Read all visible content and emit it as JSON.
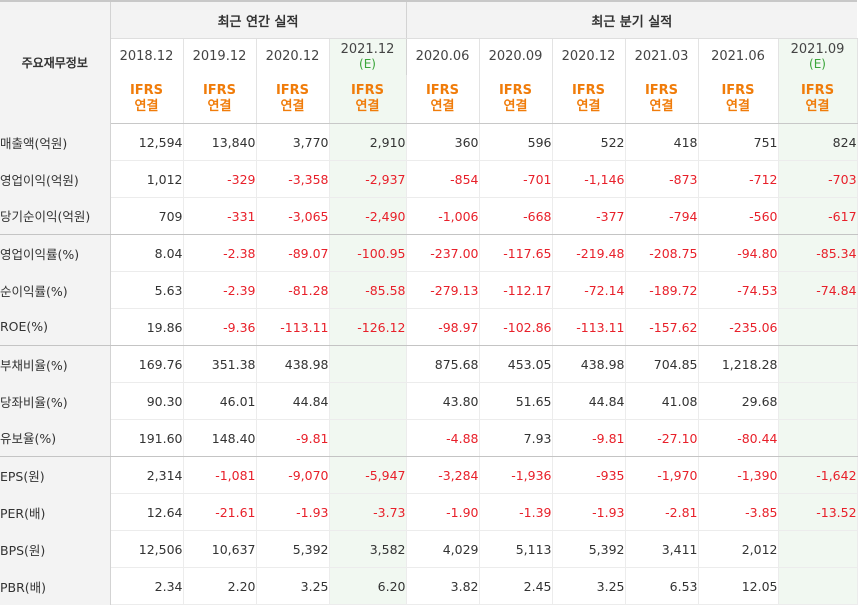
{
  "header": {
    "corner_label": "주요재무정보",
    "annual_group": "최근 연간 실적",
    "quarterly_group": "최근 분기 실적",
    "est_mark": "(E)",
    "acc_line1": "IFRS",
    "acc_line2": "연결"
  },
  "colors": {
    "negative": "#e8202a",
    "accounting": "#f07c0a",
    "estimate_bg": "#f1f8f1",
    "estimate_mark": "#3aa53a"
  },
  "periods": [
    {
      "label": "2018.12",
      "est": false
    },
    {
      "label": "2019.12",
      "est": false
    },
    {
      "label": "2020.12",
      "est": false
    },
    {
      "label": "2021.12",
      "est": true
    },
    {
      "label": "2020.06",
      "est": false
    },
    {
      "label": "2020.09",
      "est": false
    },
    {
      "label": "2020.12",
      "est": false
    },
    {
      "label": "2021.03",
      "est": false
    },
    {
      "label": "2021.06",
      "est": false
    },
    {
      "label": "2021.09",
      "est": true
    }
  ],
  "rows": [
    {
      "label": "매출액(억원)",
      "values": [
        "12,594",
        "13,840",
        "3,770",
        "2,910",
        "360",
        "596",
        "522",
        "418",
        "751",
        "824"
      ]
    },
    {
      "label": "영업이익(억원)",
      "values": [
        "1,012",
        "-329",
        "-3,358",
        "-2,937",
        "-854",
        "-701",
        "-1,146",
        "-873",
        "-712",
        "-703"
      ]
    },
    {
      "label": "당기순이익(억원)",
      "values": [
        "709",
        "-331",
        "-3,065",
        "-2,490",
        "-1,006",
        "-668",
        "-377",
        "-794",
        "-560",
        "-617"
      ]
    },
    {
      "label": "영업이익률(%)",
      "values": [
        "8.04",
        "-2.38",
        "-89.07",
        "-100.95",
        "-237.00",
        "-117.65",
        "-219.48",
        "-208.75",
        "-94.80",
        "-85.34"
      ]
    },
    {
      "label": "순이익률(%)",
      "values": [
        "5.63",
        "-2.39",
        "-81.28",
        "-85.58",
        "-279.13",
        "-112.17",
        "-72.14",
        "-189.72",
        "-74.53",
        "-74.84"
      ]
    },
    {
      "label": "ROE(%)",
      "values": [
        "19.86",
        "-9.36",
        "-113.11",
        "-126.12",
        "-98.97",
        "-102.86",
        "-113.11",
        "-157.62",
        "-235.06",
        ""
      ]
    },
    {
      "label": "부채비율(%)",
      "values": [
        "169.76",
        "351.38",
        "438.98",
        "",
        "875.68",
        "453.05",
        "438.98",
        "704.85",
        "1,218.28",
        ""
      ]
    },
    {
      "label": "당좌비율(%)",
      "values": [
        "90.30",
        "46.01",
        "44.84",
        "",
        "43.80",
        "51.65",
        "44.84",
        "41.08",
        "29.68",
        ""
      ]
    },
    {
      "label": "유보율(%)",
      "values": [
        "191.60",
        "148.40",
        "-9.81",
        "",
        "-4.88",
        "7.93",
        "-9.81",
        "-27.10",
        "-80.44",
        ""
      ]
    },
    {
      "label": "EPS(원)",
      "values": [
        "2,314",
        "-1,081",
        "-9,070",
        "-5,947",
        "-3,284",
        "-1,936",
        "-935",
        "-1,970",
        "-1,390",
        "-1,642"
      ]
    },
    {
      "label": "PER(배)",
      "values": [
        "12.64",
        "-21.61",
        "-1.93",
        "-3.73",
        "-1.90",
        "-1.39",
        "-1.93",
        "-2.81",
        "-3.85",
        "-13.52"
      ]
    },
    {
      "label": "BPS(원)",
      "values": [
        "12,506",
        "10,637",
        "5,392",
        "3,582",
        "4,029",
        "5,113",
        "5,392",
        "3,411",
        "2,012",
        ""
      ]
    },
    {
      "label": "PBR(배)",
      "values": [
        "2.34",
        "2.20",
        "3.25",
        "6.20",
        "3.82",
        "2.45",
        "3.25",
        "6.53",
        "12.05",
        ""
      ]
    }
  ]
}
